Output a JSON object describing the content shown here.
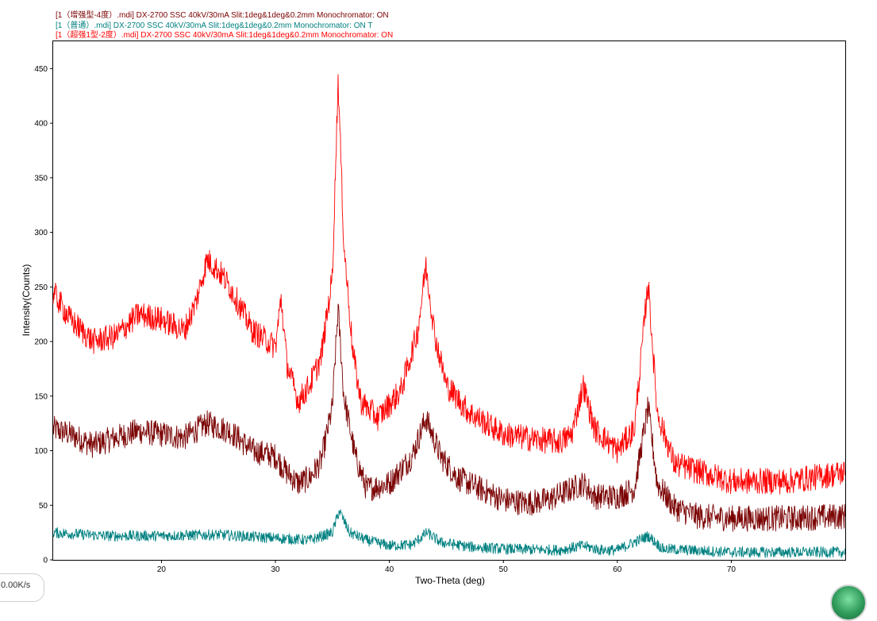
{
  "chart_data": {
    "type": "line",
    "xlabel": "Two-Theta (deg)",
    "ylabel": "Intensity(Counts)",
    "xlim": [
      10.5,
      80
    ],
    "ylim": [
      0,
      475
    ],
    "x_ticks": [
      20,
      30,
      40,
      50,
      60,
      70
    ],
    "y_ticks": [
      0,
      50,
      100,
      150,
      200,
      250,
      300,
      350,
      400,
      450
    ],
    "grid": false,
    "legend_position": "top-left, above plot",
    "series": [
      {
        "name": "[1（增强型-4度）.mdi] DX-2700 SSC 40kV/30mA Slit:1deg&1deg&0.2mm Monochromator: ON",
        "color": "#7a0000",
        "x": [
          10.5,
          12,
          14,
          16,
          18,
          20,
          22,
          24,
          26,
          28,
          30,
          31,
          32,
          33,
          34,
          35,
          35.5,
          36,
          37,
          38,
          40,
          42,
          43.2,
          44.5,
          46,
          48,
          50,
          52,
          54,
          55,
          56,
          57,
          58,
          60,
          61.5,
          62.7,
          63.5,
          65,
          67,
          70,
          75,
          80
        ],
        "values": [
          120,
          115,
          105,
          112,
          118,
          115,
          112,
          125,
          118,
          100,
          95,
          80,
          70,
          75,
          90,
          140,
          230,
          150,
          95,
          65,
          70,
          95,
          130,
          95,
          75,
          65,
          55,
          52,
          55,
          60,
          65,
          70,
          58,
          58,
          65,
          140,
          70,
          48,
          40,
          38,
          38,
          40
        ],
        "noise": 12
      },
      {
        "name": "[1（普通）.mdi] DX-2700 SSC 40kV/30mA Slit:1deg&1deg&0.2mm Monochromator: ON T",
        "color": "#008080",
        "x": [
          10.5,
          15,
          20,
          25,
          30,
          33,
          35,
          35.6,
          36.5,
          38,
          40,
          42,
          43.3,
          44.5,
          47,
          50,
          55,
          57,
          58.5,
          60,
          62.7,
          64,
          70,
          75,
          80
        ],
        "values": [
          25,
          22,
          22,
          23,
          20,
          18,
          25,
          45,
          25,
          18,
          13,
          14,
          25,
          16,
          12,
          10,
          9,
          13,
          9,
          9,
          22,
          10,
          7,
          7,
          7
        ],
        "noise": 5
      },
      {
        "name": "[1（超强1型-2度）.mdi] DX-2700 SSC 40kV/30mA Slit:1deg&1deg&0.2mm Monochromator: ON",
        "color": "#ff0000",
        "x": [
          10.5,
          12,
          14,
          16,
          18,
          20,
          22,
          23,
          24,
          25,
          26,
          27,
          28,
          30,
          30.5,
          31,
          32,
          33,
          34,
          35,
          35.5,
          36,
          36.8,
          37.5,
          39,
          41,
          42.5,
          43.2,
          44,
          45,
          47,
          50,
          53,
          55,
          56,
          57,
          58,
          60,
          61.5,
          62.7,
          63.5,
          65,
          70,
          75,
          80
        ],
        "values": [
          245,
          220,
          200,
          205,
          225,
          220,
          210,
          235,
          275,
          265,
          250,
          230,
          210,
          195,
          240,
          180,
          145,
          160,
          185,
          260,
          440,
          290,
          190,
          145,
          130,
          155,
          210,
          270,
          205,
          160,
          135,
          115,
          110,
          108,
          115,
          160,
          120,
          100,
          120,
          255,
          135,
          88,
          72,
          72,
          80
        ],
        "noise": 12
      }
    ]
  },
  "status_badge": "0.00K/s"
}
